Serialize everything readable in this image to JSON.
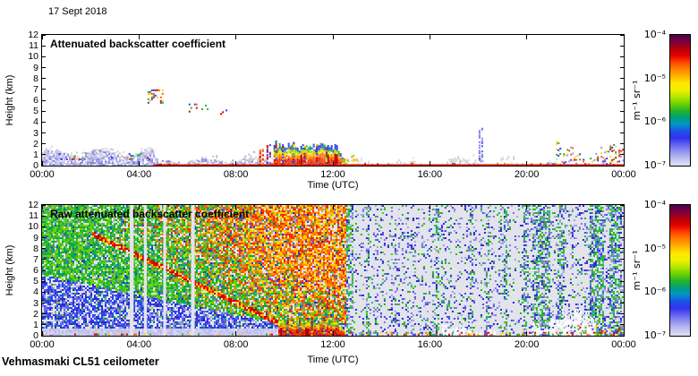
{
  "header": {
    "date_label": "17 Sept 2018"
  },
  "footer": {
    "station_label": "Vehmasmaki CL51 ceilometer"
  },
  "colorbar": {
    "unit_label": "m⁻¹ sr⁻¹",
    "tick_labels": [
      "10⁻⁴",
      "10⁻⁵",
      "10⁻⁶",
      "10⁻⁷"
    ],
    "scale": "log",
    "range": [
      "1e-7",
      "1e-4"
    ],
    "gradient_top_to_bottom": [
      "#50004b",
      "#7a0040",
      "#b4000a",
      "#e60000",
      "#ff4600",
      "#ff8200",
      "#ffb400",
      "#ffe600",
      "#f0f000",
      "#b4e600",
      "#6ed200",
      "#28b428",
      "#00a078",
      "#0096c8",
      "#1e50e6",
      "#3232f0",
      "#6464f0",
      "#9696ee",
      "#c0c0f0",
      "#e0e0f8"
    ]
  },
  "chart_data": [
    {
      "type": "heatmap",
      "title": "Attenuated backscatter coefficient",
      "xlabel": "Time (UTC)",
      "ylabel": "Height (km)",
      "x_tick_hours": [
        0,
        4,
        8,
        12,
        16,
        20,
        24
      ],
      "x_tick_labels": [
        "00:00",
        "04:00",
        "08:00",
        "12:00",
        "16:00",
        "20:00",
        "00:00"
      ],
      "y_ticks": [
        0,
        1,
        2,
        3,
        4,
        5,
        6,
        7,
        8,
        9,
        10,
        11,
        12
      ],
      "xlim_hours": [
        0,
        24
      ],
      "ylim_km": [
        0,
        12
      ],
      "grid": false,
      "bg": "#ffffff",
      "features": [
        {
          "label": "boundary-layer aerosol 00:00-04:40",
          "type": "speckle",
          "t": [
            0,
            4.65
          ],
          "h": [
            0,
            1.15
          ],
          "density": 0.8,
          "top_jitter": 0.35,
          "palette": [
            "#b4b4e8",
            "#9898e0",
            "#ccccf0",
            "#8484dc",
            "#c0c0ec"
          ]
        },
        {
          "label": "gray fringe above boundary layer",
          "type": "speckle",
          "t": [
            0,
            4.65
          ],
          "h": [
            0.9,
            1.45
          ],
          "density": 0.3,
          "top_jitter": 0.3,
          "palette": [
            "#d8d8d8",
            "#cbcbcb",
            "#e2e2e2"
          ]
        },
        {
          "label": "embedded strong echoes",
          "type": "speckle",
          "t": [
            0.4,
            4.4
          ],
          "h": [
            0.6,
            1.15
          ],
          "density": 0.05,
          "palette": [
            "#ff5000",
            "#ffa000",
            "#e60000",
            "#28b428",
            "#3c3cf0"
          ]
        },
        {
          "label": "shallow layer 04:40-09:30",
          "type": "speckle",
          "t": [
            4.65,
            9.55
          ],
          "h": [
            0,
            0.5
          ],
          "density": 0.55,
          "top_jitter": 0.25,
          "palette": [
            "#9898e0",
            "#b4b4e8",
            "#d0d0d0",
            "#dcdcdc",
            "#8484dc"
          ]
        },
        {
          "label": "gray bumps 07:00-09:30",
          "type": "speckle",
          "t": [
            6.8,
            9.5
          ],
          "h": [
            0,
            0.85
          ],
          "density": 0.25,
          "top_jitter": 0.4,
          "palette": [
            "#d6d6d6",
            "#c4c4d8",
            "#a8a8dc"
          ]
        },
        {
          "label": "surface echoes",
          "type": "speckle",
          "t": [
            4.65,
            9.55
          ],
          "h": [
            0,
            0.18
          ],
          "density": 0.2,
          "palette": [
            "#e60000",
            "#ff6400",
            "#28b428",
            "#3c3cf0",
            "#ffd200"
          ]
        },
        {
          "label": "cloud 6-7 km ~04:30",
          "type": "speckle",
          "t": [
            4.35,
            5.0
          ],
          "h": [
            5.8,
            7.0
          ],
          "density": 0.38,
          "palette": [
            "#28b428",
            "#e60000",
            "#ffd200",
            "#3c3cf0",
            "#ff6400"
          ]
        },
        {
          "label": "cloud 5-5.7 km ~06:00",
          "type": "speckle",
          "t": [
            5.9,
            6.35
          ],
          "h": [
            4.9,
            5.7
          ],
          "density": 0.34,
          "palette": [
            "#28b428",
            "#e60000",
            "#ffd200",
            "#3c3cf0",
            "#ff6400"
          ]
        },
        {
          "label": "cloud ~06:40",
          "type": "speckle",
          "t": [
            6.5,
            6.8
          ],
          "h": [
            5.15,
            5.6
          ],
          "density": 0.3,
          "palette": [
            "#28b428",
            "#e60000",
            "#ffd200",
            "#3c3cf0",
            "#ff6400"
          ]
        },
        {
          "label": "cloud ~07:30",
          "type": "speckle",
          "t": [
            7.35,
            7.6
          ],
          "h": [
            4.8,
            5.15
          ],
          "density": 0.3,
          "palette": [
            "#28b428",
            "#e60000",
            "#ffd200",
            "#3c3cf0",
            "#ff6400"
          ]
        },
        {
          "label": "pre-rain streak",
          "type": "plume",
          "t": 9.0,
          "h": [
            0,
            1.6
          ],
          "density": 0.7,
          "palette": [
            "#e60000",
            "#ff6400"
          ]
        },
        {
          "label": "pre-rain streak",
          "type": "plume",
          "t": 9.3,
          "h": [
            0,
            2.1
          ],
          "density": 0.6,
          "palette": [
            "#e60000",
            "#3c3cf0"
          ]
        },
        {
          "label": "precipitation / fog 09:30-12:30",
          "type": "rain",
          "t": [
            9.55,
            12.45
          ],
          "top": [
            1.5,
            2.1
          ],
          "layers": [
            [
              0.4,
              [
                "#c80000",
                "#e62800",
                "#ff3c00"
              ]
            ],
            [
              0.6,
              [
                "#ff6400",
                "#ff8c00"
              ]
            ],
            [
              0.72,
              [
                "#ffc800",
                "#ffe600"
              ]
            ],
            [
              0.82,
              [
                "#a0dc00",
                "#50c828"
              ]
            ],
            [
              1.01,
              [
                "#3c3cf0",
                "#1450e6",
                "#28b428"
              ]
            ]
          ],
          "spikes": [
            [
              9.62,
              2.35
            ],
            [
              9.9,
              2.0
            ],
            [
              10.35,
              2.2
            ],
            [
              10.8,
              1.9
            ],
            [
              11.3,
              2.1
            ],
            [
              11.7,
              1.85
            ]
          ]
        },
        {
          "label": "rain taper",
          "type": "speckle",
          "t": [
            12.45,
            13.0
          ],
          "h": [
            0,
            0.6
          ],
          "density": 0.5,
          "top_jitter": 0.3,
          "palette": [
            "#ff9600",
            "#ffd200",
            "#78d200",
            "#d0d0d0"
          ]
        },
        {
          "label": "afternoon weak layer",
          "type": "speckle",
          "t": [
            13.0,
            21.2
          ],
          "h": [
            0,
            0.3
          ],
          "density": 0.4,
          "top_jitter": 0.5,
          "palette": [
            "#d6d6d6",
            "#c8c8c8",
            "#e0e0e0"
          ]
        },
        {
          "label": "afternoon surface echoes",
          "type": "speckle",
          "t": [
            13.0,
            21.2
          ],
          "h": [
            0,
            0.22
          ],
          "density": 0.12,
          "palette": [
            "#e60000",
            "#ff6400",
            "#28b428",
            "#3c3cf0",
            "#ffd200"
          ]
        },
        {
          "label": "narrow plume ~18:00 to 3.5 km",
          "type": "plume",
          "t": 18.05,
          "h": [
            0.4,
            3.5
          ],
          "density": 0.5,
          "palette": [
            "#5050e8",
            "#8888ea"
          ]
        },
        {
          "label": "plume base",
          "type": "speckle",
          "t": [
            17.7,
            18.4
          ],
          "h": [
            0,
            1.0
          ],
          "density": 0.3,
          "top_jitter": 0.4,
          "palette": [
            "#d8d8d8",
            "#9898e0"
          ]
        },
        {
          "label": "evening aerosol 21:00-24:00",
          "type": "speckle",
          "t": [
            21.2,
            24
          ],
          "h": [
            0,
            1.3
          ],
          "density": 0.32,
          "top_jitter": 0.9,
          "palette": [
            "#e60000",
            "#ff6400",
            "#ffd200",
            "#28b428",
            "#3c3cf0",
            "#d8d8d8",
            "#9898e0"
          ]
        },
        {
          "label": "strong surface return line",
          "type": "solid",
          "t": [
            4.6,
            24
          ],
          "h": [
            0,
            0.12
          ],
          "color": "#d40000",
          "color2": "#ff5a00"
        }
      ]
    },
    {
      "type": "heatmap",
      "title": "Raw attenuated backscatter coefficient",
      "xlabel": "Time (UTC)",
      "ylabel": "Height (km)",
      "x_tick_hours": [
        0,
        4,
        8,
        12,
        16,
        20,
        24
      ],
      "x_tick_labels": [
        "00:00",
        "04:00",
        "08:00",
        "12:00",
        "16:00",
        "20:00",
        "00:00"
      ],
      "y_ticks": [
        0,
        1,
        2,
        3,
        4,
        5,
        6,
        7,
        8,
        9,
        10,
        11,
        12
      ],
      "xlim_hours": [
        0,
        24
      ],
      "ylim_km": [
        0,
        12
      ],
      "grid": false,
      "bg": "#e3e3ec",
      "features": [
        {
          "label": "daylight noise field with descending cloud band",
          "type": "raw_day",
          "t": [
            0,
            12.55
          ],
          "band_t": [
            3.2,
            9.75
          ],
          "band_h": [
            8.2,
            1.2
          ],
          "blue_top_t": [
            0,
            9.75
          ],
          "blue_top_h": [
            5.6,
            1.2
          ],
          "lavender": "#c6c6ee",
          "lavender_h": 0.75,
          "blue_palette": [
            "#3c3cf0",
            "#1450e6",
            "#2828c8",
            "#6464ee",
            "#9898e8"
          ],
          "green_palette": [
            "#28b428",
            "#50c828",
            "#78d200",
            "#00a064"
          ],
          "warm_palette": [
            "#ffd200",
            "#ff9600",
            "#ff6400",
            "#e63200"
          ],
          "band_palette": [
            "#e60000",
            "#ff6400",
            "#ffd200",
            "#c80000"
          ]
        },
        {
          "label": "profile gaps",
          "type": "clear_stripes",
          "stripes": [
            [
              3.62,
              3.78
            ],
            [
              4.2,
              4.32
            ],
            [
              5.0,
              5.12
            ],
            [
              6.15,
              6.3
            ]
          ]
        },
        {
          "label": "rain reaching surface 09:45-12:30",
          "type": "rain",
          "t": [
            9.75,
            12.5
          ],
          "top": [
            1.0,
            1.45
          ],
          "layers": [
            [
              0.55,
              [
                "#c80000",
                "#e62800",
                "#ff3c00"
              ]
            ],
            [
              0.8,
              [
                "#ff6400",
                "#ffc800"
              ]
            ],
            [
              1.01,
              [
                "#ffe600",
                "#78d200"
              ]
            ]
          ],
          "spikes": [
            [
              10.1,
              1.9
            ],
            [
              10.6,
              2.0
            ],
            [
              11.1,
              1.8
            ],
            [
              11.6,
              2.0
            ],
            [
              12.1,
              1.7
            ]
          ]
        },
        {
          "label": "surface echoes before rain",
          "type": "speckle",
          "t": [
            0,
            9.75
          ],
          "h": [
            0,
            0.2
          ],
          "density": 0.15,
          "palette": [
            "#e60000",
            "#ff6400",
            "#ffd200",
            "#28b428"
          ]
        },
        {
          "label": "night sparse noise with dense stripes and dropouts",
          "type": "raw_night",
          "t": [
            12.55,
            24
          ],
          "base_density": 0.2,
          "green_mix": 0.06,
          "stripe_green": 0.35,
          "palette": [
            "#4646e8",
            "#2828cc",
            "#7878ee",
            "#a0a0ee",
            "#28b428"
          ],
          "stripes": [
            [
              12.55,
              12.8,
              0.55
            ],
            [
              13.35,
              13.5,
              0.5
            ],
            [
              16.2,
              16.35,
              0.45
            ],
            [
              17.6,
              17.72,
              0.4
            ],
            [
              18.3,
              18.45,
              0.45
            ],
            [
              19.0,
              19.15,
              0.45
            ],
            [
              19.8,
              20.0,
              0.5
            ],
            [
              20.2,
              20.95,
              0.6
            ],
            [
              21.25,
              21.55,
              0.55
            ],
            [
              22.55,
              23.15,
              0.65
            ],
            [
              23.35,
              23.85,
              0.6
            ]
          ],
          "white_patches": [
            [
              16.5,
              18.7,
              1.0
            ],
            [
              20.2,
              22.8,
              2.4
            ]
          ],
          "bottom_specks": {
            "h": 0.35,
            "density": 0.3,
            "palette": [
              "#e60000",
              "#ff6400",
              "#ffd200",
              "#28b428",
              "#3c3cf0"
            ]
          },
          "late_specks": {
            "t": [
              21.8,
              24
            ],
            "h": 1.0,
            "density": 0.22
          }
        }
      ]
    }
  ]
}
